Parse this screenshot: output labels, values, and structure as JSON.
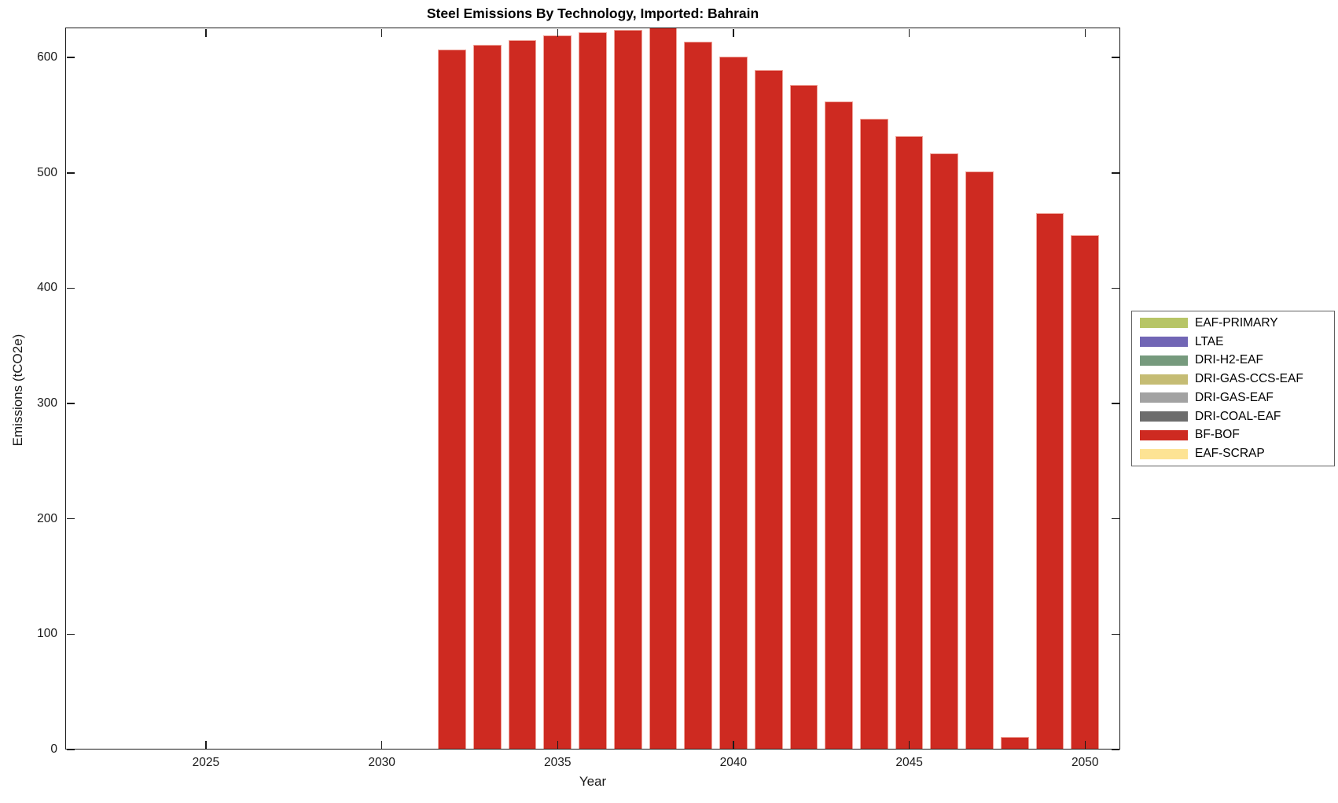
{
  "chart_data": {
    "type": "bar",
    "stacked": true,
    "title": "Steel Emissions By Technology, Imported: Bahrain",
    "xlabel": "Year",
    "ylabel": "Emissions (tCO2e)",
    "xlim": [
      2021,
      2051
    ],
    "ylim": [
      0,
      626
    ],
    "x_ticks": [
      2025,
      2030,
      2035,
      2040,
      2045,
      2050
    ],
    "y_ticks": [
      0,
      100,
      200,
      300,
      400,
      500,
      600
    ],
    "grid": false,
    "legend_position": "outside-right",
    "bar_width_years": 0.8,
    "categories": [
      2032,
      2033,
      2034,
      2035,
      2036,
      2037,
      2038,
      2039,
      2040,
      2041,
      2042,
      2043,
      2044,
      2045,
      2046,
      2047,
      2048,
      2049,
      2050
    ],
    "series": [
      {
        "name": "EAF-PRIMARY",
        "color": "#b7c566",
        "values": [
          0,
          0,
          0,
          0,
          0,
          0,
          0,
          0,
          0,
          0,
          0,
          0,
          0,
          0,
          0,
          0,
          0,
          0,
          0
        ]
      },
      {
        "name": "LTAE",
        "color": "#7166b5",
        "values": [
          0,
          0,
          0,
          0,
          0,
          0,
          0,
          0,
          0,
          0,
          0,
          0,
          0,
          0,
          0,
          0,
          0,
          0,
          0
        ]
      },
      {
        "name": "DRI-H2-EAF",
        "color": "#769a7d",
        "values": [
          0,
          0,
          0,
          0,
          0,
          0,
          0,
          0,
          0,
          0,
          0,
          0,
          0,
          0,
          0,
          0,
          0,
          0,
          0
        ]
      },
      {
        "name": "DRI-GAS-CCS-EAF",
        "color": "#c5bc74",
        "values": [
          0,
          0,
          0,
          0,
          0,
          0,
          0,
          0,
          0,
          0,
          0,
          0,
          0,
          0,
          0,
          0,
          0,
          0,
          0
        ]
      },
      {
        "name": "DRI-GAS-EAF",
        "color": "#a2a2a2",
        "values": [
          0,
          0,
          0,
          0,
          0,
          0,
          0,
          0,
          0,
          0,
          0,
          0,
          0,
          0,
          0,
          0,
          0,
          0,
          0
        ]
      },
      {
        "name": "DRI-COAL-EAF",
        "color": "#6d6d6d",
        "values": [
          0,
          0,
          0,
          0,
          0,
          0,
          0,
          0,
          0,
          0,
          0,
          0,
          0,
          0,
          0,
          0,
          0,
          0,
          0
        ]
      },
      {
        "name": "BF-BOF",
        "color": "#ce2a21",
        "values": [
          607,
          611,
          615,
          619,
          622,
          624,
          626,
          614,
          601,
          589,
          576,
          562,
          547,
          532,
          517,
          501,
          11,
          465,
          446
        ]
      },
      {
        "name": "EAF-SCRAP",
        "color": "#fde394",
        "values": [
          0,
          0,
          0,
          0,
          0,
          0,
          0,
          0,
          0,
          0,
          0,
          0,
          0,
          0,
          0,
          0,
          0,
          0,
          0
        ]
      }
    ]
  }
}
